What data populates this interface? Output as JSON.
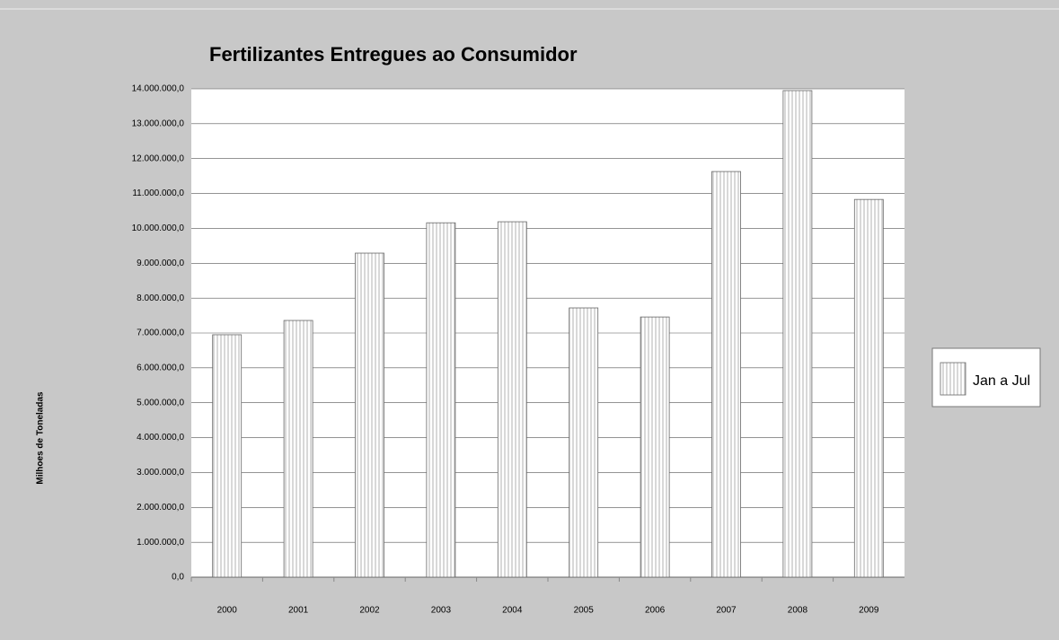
{
  "chart_data": {
    "type": "bar",
    "title": "Fertilizantes Entregues ao Consumidor",
    "y_label": "Milhoes de Toneladas",
    "categories": [
      "2000",
      "2001",
      "2002",
      "2003",
      "2004",
      "2005",
      "2006",
      "2007",
      "2008",
      "2009"
    ],
    "series": [
      {
        "name": "Jan a Jul",
        "color": "#909090",
        "values": [
          6950000,
          7360000,
          9290000,
          10160000,
          10190000,
          7720000,
          7460000,
          11630000,
          13950000,
          10830000
        ]
      }
    ],
    "ylim": [
      0,
      14000000
    ],
    "yticks": [
      {
        "value": 0,
        "label": "0,0"
      },
      {
        "value": 1000000,
        "label": "1.000.000,0"
      },
      {
        "value": 2000000,
        "label": "2.000.000,0"
      },
      {
        "value": 3000000,
        "label": "3.000.000,0"
      },
      {
        "value": 4000000,
        "label": "4.000.000,0"
      },
      {
        "value": 5000000,
        "label": "5.000.000,0"
      },
      {
        "value": 6000000,
        "label": "6.000.000,0"
      },
      {
        "value": 7000000,
        "label": "7.000.000,0"
      },
      {
        "value": 8000000,
        "label": "8.000.000,0"
      },
      {
        "value": 9000000,
        "label": "9.000.000,0"
      },
      {
        "value": 10000000,
        "label": "10.000.000,0"
      },
      {
        "value": 11000000,
        "label": "11.000.000,0"
      },
      {
        "value": 12000000,
        "label": "12.000.000,0"
      },
      {
        "value": 13000000,
        "label": "13.000.000,0"
      },
      {
        "value": 14000000,
        "label": "14.000.000,0"
      }
    ],
    "grid": true,
    "legend": "right"
  }
}
